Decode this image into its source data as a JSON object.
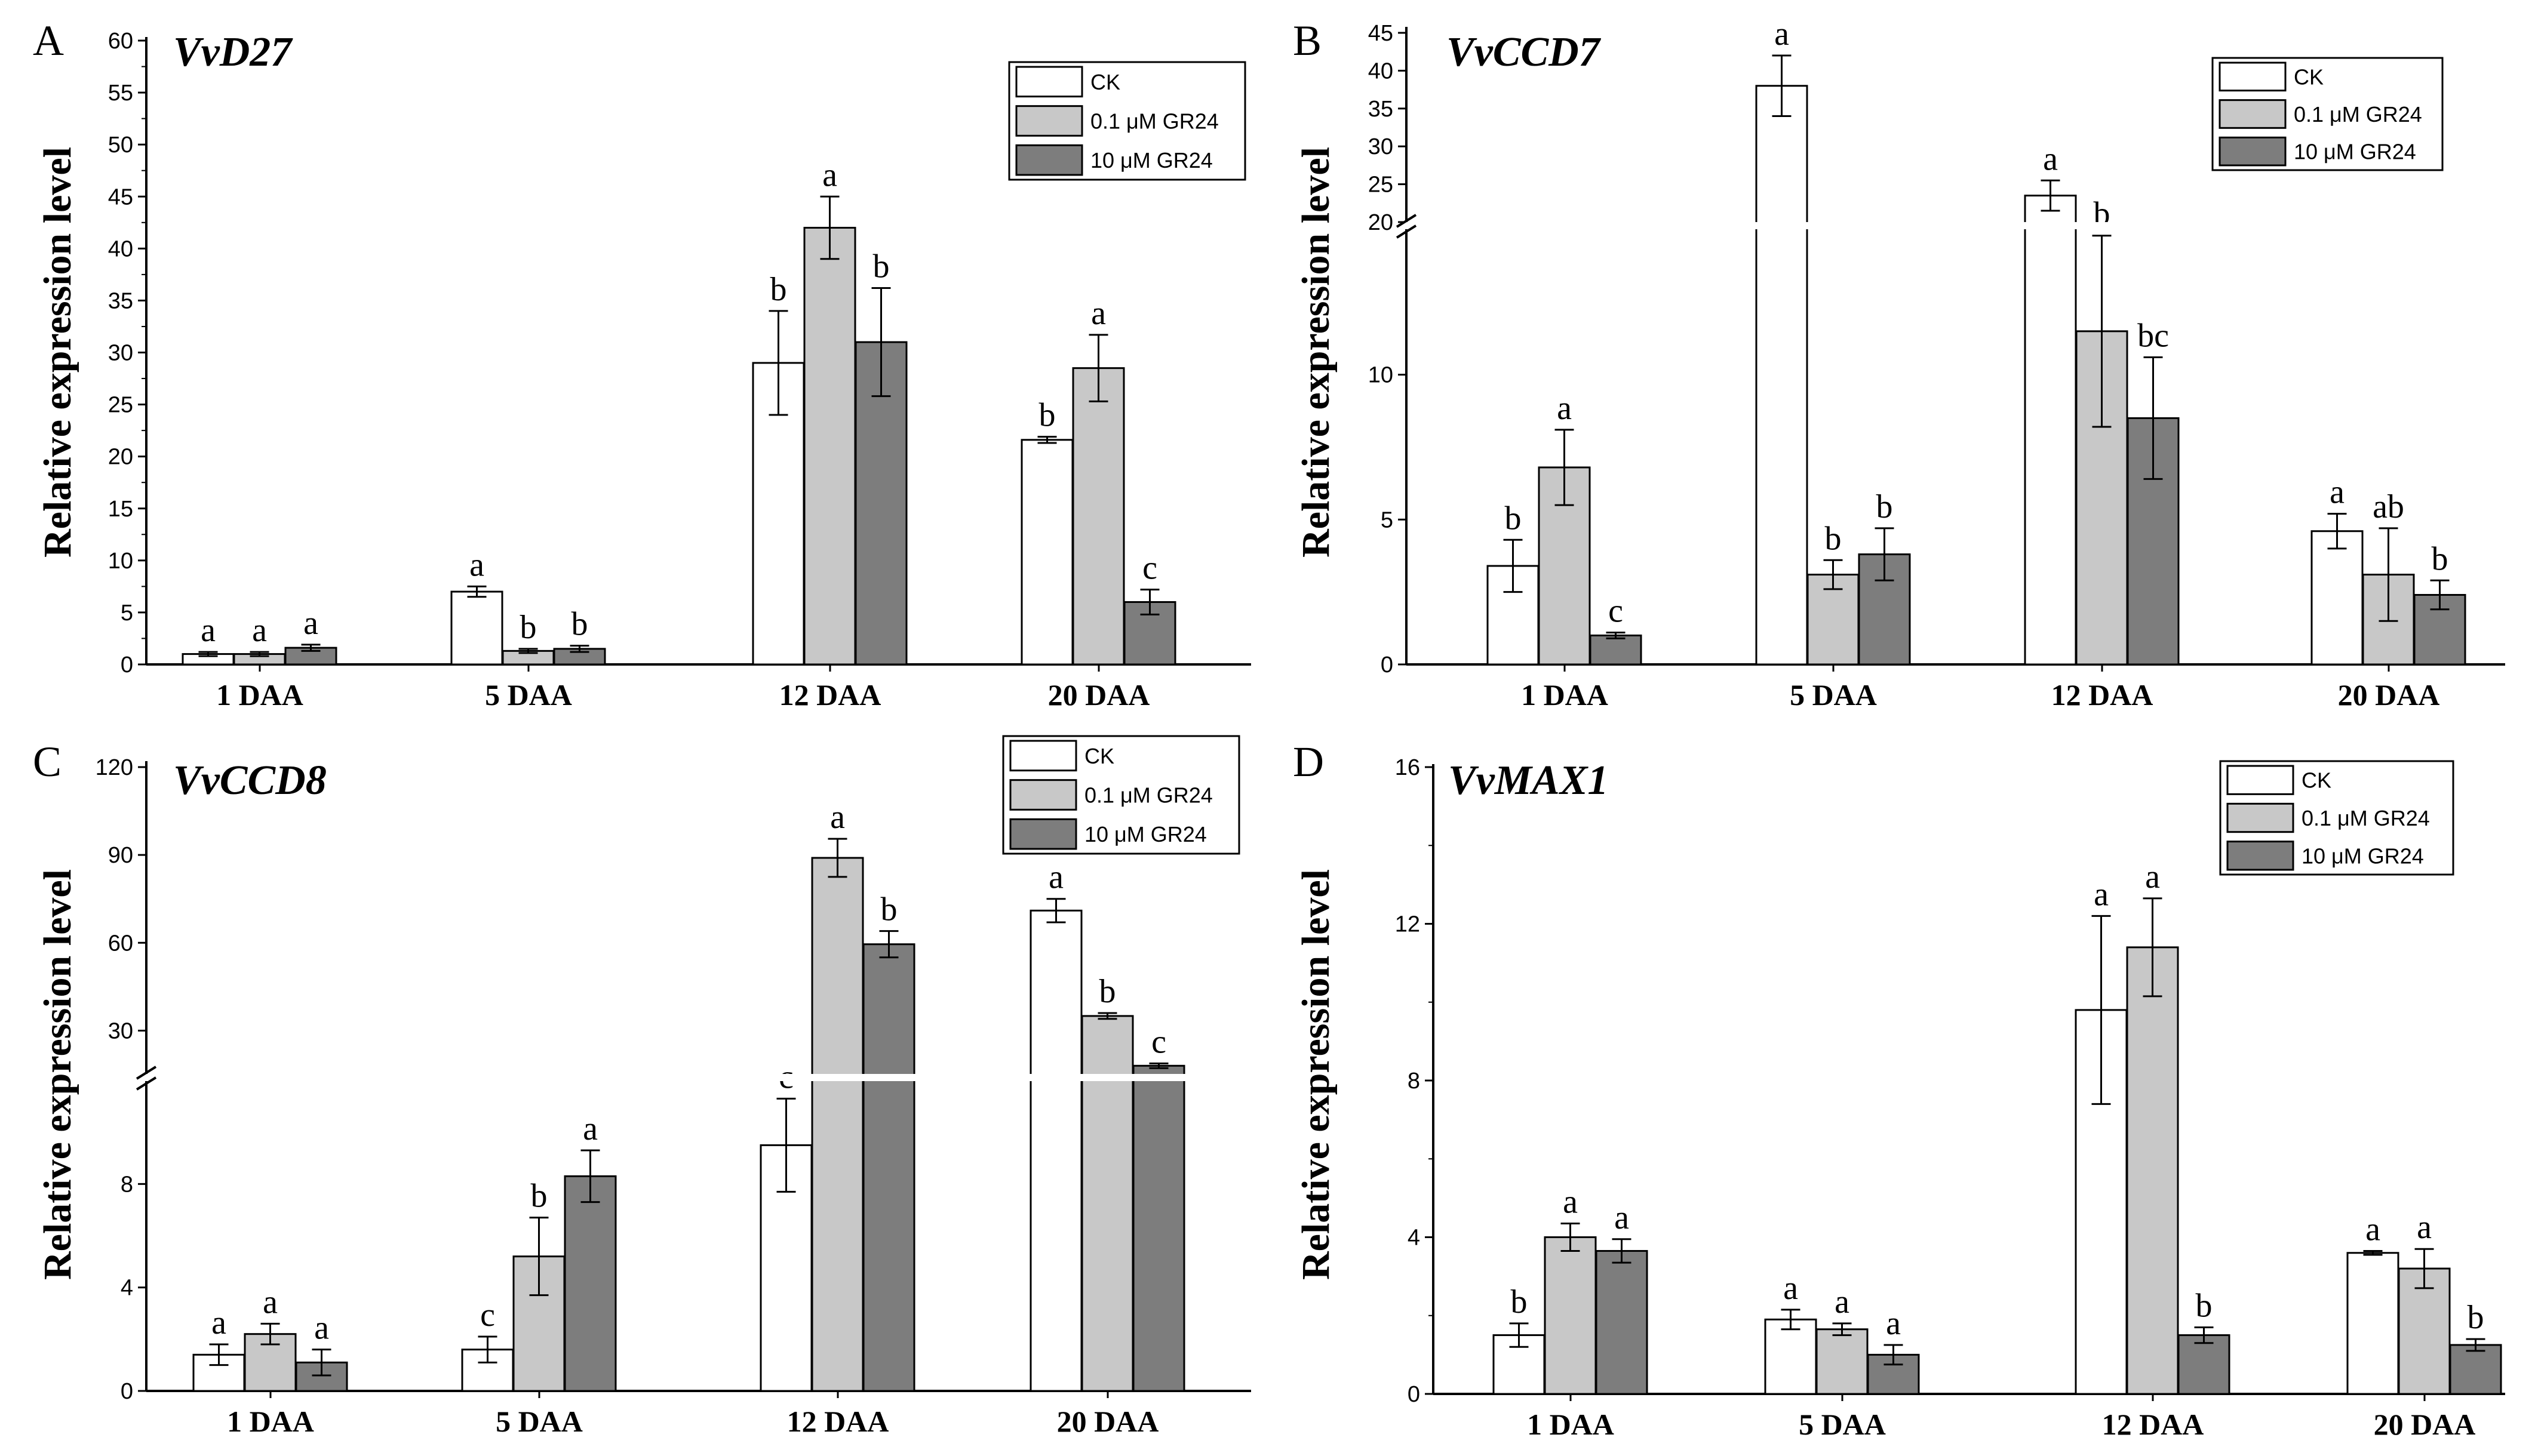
{
  "groups": [
    "CK",
    "0.1 μM GR24",
    "10  μM GR24"
  ],
  "colors": {
    "CK": "#ffffff",
    "low": "#c8c8c8",
    "high": "#7d7d7d"
  },
  "chart_data": [
    {
      "panel": "A",
      "type": "bar",
      "title": "VvD27",
      "ylabel": "Relative expression level",
      "categories": [
        "1 DAA",
        "5 DAA",
        "12 DAA",
        "20 DAA"
      ],
      "yticks": [
        "0",
        "5",
        "10",
        "15",
        "20",
        "25",
        "30",
        "35",
        "40",
        "45",
        "50",
        "55",
        "60"
      ],
      "ylim": [
        0,
        60
      ],
      "series": [
        {
          "name": "CK",
          "values": [
            1.0,
            7.0,
            29.0,
            21.6
          ],
          "errors": [
            0.2,
            0.5,
            5.0,
            0.3
          ],
          "labels": [
            "a",
            "a",
            "b",
            "b"
          ]
        },
        {
          "name": "0.1 μM GR24",
          "values": [
            1.0,
            1.3,
            42.0,
            28.5
          ],
          "errors": [
            0.2,
            0.2,
            3.0,
            3.2
          ],
          "labels": [
            "a",
            "b",
            "a",
            "a"
          ]
        },
        {
          "name": "10  μM GR24",
          "values": [
            1.6,
            1.5,
            31.0,
            6.0
          ],
          "errors": [
            0.3,
            0.3,
            5.2,
            1.2
          ],
          "labels": [
            "a",
            "b",
            "b",
            "c"
          ]
        }
      ],
      "legend": "top-right"
    },
    {
      "panel": "B",
      "type": "bar",
      "title": "VvCCD7",
      "ylabel": "Relative expression level",
      "categories": [
        "1 DAA",
        "5 DAA",
        "12 DAA",
        "20 DAA"
      ],
      "yticks_lower": [
        "0",
        "5",
        "10"
      ],
      "yticks_upper": [
        "20",
        "25",
        "30",
        "35",
        "40",
        "45"
      ],
      "ylim": [
        0,
        45
      ],
      "axis_break": [
        15,
        20
      ],
      "series": [
        {
          "name": "CK",
          "values": [
            3.4,
            38.0,
            23.5,
            4.6
          ],
          "errors": [
            0.9,
            4.0,
            2.0,
            0.6
          ],
          "labels": [
            "b",
            "a",
            "a",
            "a"
          ]
        },
        {
          "name": "0.1 μM GR24",
          "values": [
            6.8,
            3.1,
            11.5,
            3.1
          ],
          "errors": [
            1.3,
            0.5,
            3.3,
            1.6
          ],
          "labels": [
            "a",
            "b",
            "b",
            "ab"
          ]
        },
        {
          "name": "10  μM GR24",
          "values": [
            1.0,
            3.8,
            8.5,
            2.4
          ],
          "errors": [
            0.1,
            0.9,
            2.1,
            0.5
          ],
          "labels": [
            "c",
            "b",
            "bc",
            "b"
          ]
        }
      ],
      "legend": "top-right"
    },
    {
      "panel": "C",
      "type": "bar",
      "title": "VvCCD8",
      "ylabel": "Relative expression level",
      "categories": [
        "1 DAA",
        "5 DAA",
        "12 DAA",
        "20 DAA"
      ],
      "yticks_lower": [
        "0",
        "4",
        "8"
      ],
      "yticks_upper": [
        "30",
        "60",
        "90",
        "120"
      ],
      "ylim": [
        0,
        120
      ],
      "axis_break": [
        12,
        15
      ],
      "series": [
        {
          "name": "CK",
          "values": [
            1.4,
            1.6,
            9.5,
            71.0
          ],
          "errors": [
            0.4,
            0.5,
            1.8,
            4.0
          ],
          "labels": [
            "a",
            "c",
            "c",
            "a"
          ]
        },
        {
          "name": "0.1 μM GR24",
          "values": [
            2.2,
            5.2,
            89.0,
            35.0
          ],
          "errors": [
            0.4,
            1.5,
            6.5,
            1.0
          ],
          "labels": [
            "a",
            "b",
            "a",
            "b"
          ]
        },
        {
          "name": "10  μM GR24",
          "values": [
            1.1,
            8.3,
            59.5,
            18.0
          ],
          "errors": [
            0.5,
            1.0,
            4.5,
            0.8
          ],
          "labels": [
            "a",
            "a",
            "b",
            "c"
          ]
        }
      ],
      "legend": "top-right"
    },
    {
      "panel": "D",
      "type": "bar",
      "title": "VvMAX1",
      "ylabel": "Relative expression level",
      "categories": [
        "1 DAA",
        "5 DAA",
        "12 DAA",
        "20 DAA"
      ],
      "yticks": [
        "0",
        "4",
        "8",
        "12",
        "16"
      ],
      "ylim": [
        0,
        16
      ],
      "series": [
        {
          "name": "CK",
          "values": [
            1.5,
            1.9,
            9.8,
            3.6
          ],
          "errors": [
            0.3,
            0.25,
            2.4,
            0.05
          ],
          "labels": [
            "b",
            "a",
            "a",
            "a"
          ]
        },
        {
          "name": "0.1 μM GR24",
          "values": [
            4.0,
            1.65,
            11.4,
            3.2
          ],
          "errors": [
            0.35,
            0.15,
            1.25,
            0.5
          ],
          "labels": [
            "a",
            "a",
            "a",
            "a"
          ]
        },
        {
          "name": "10  μM GR24",
          "values": [
            3.65,
            1.0,
            1.5,
            1.25
          ],
          "errors": [
            0.3,
            0.25,
            0.2,
            0.15
          ],
          "labels": [
            "a",
            "a",
            "b",
            "b"
          ]
        }
      ],
      "legend": "top-right"
    }
  ]
}
